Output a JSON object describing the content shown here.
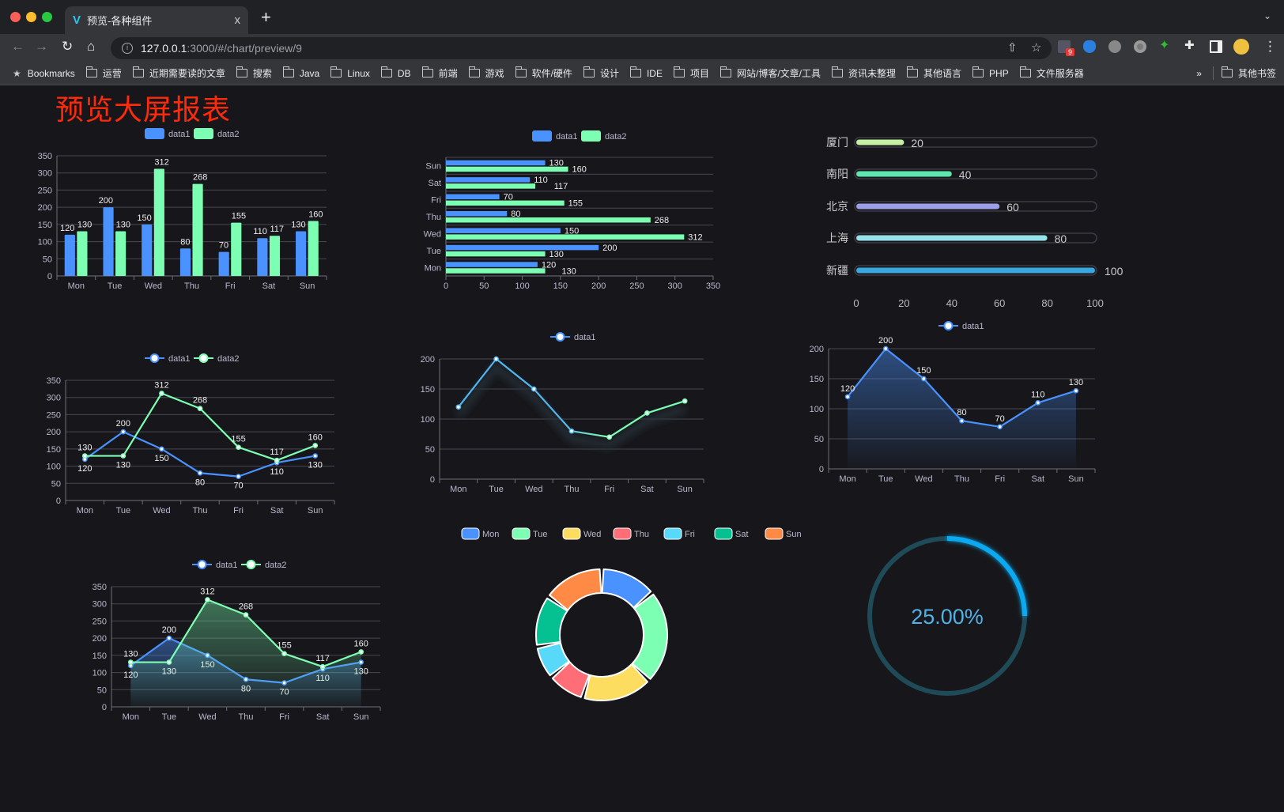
{
  "browser": {
    "tab_title": "预览-各种组件",
    "tab_close": "x",
    "new_tab": "+",
    "url_host": "127.0.0.1",
    "url_path": ":3000/#/chart/preview/9",
    "extension_badge": "9",
    "bookmarks": [
      "Bookmarks",
      "运营",
      "近期需要读的文章",
      "搜索",
      "Java",
      "Linux",
      "DB",
      "前端",
      "游戏",
      "软件/硬件",
      "设计",
      "IDE",
      "项目",
      "网站/博客/文章/工具",
      "资讯未整理",
      "其他语言",
      "PHP",
      "文件服务器"
    ],
    "bookmarks_more": "»",
    "other_bookmarks": "其他书签"
  },
  "page": {
    "title": "预览大屏报表"
  },
  "colors": {
    "data1": "#4992ff",
    "data2": "#7cffb2",
    "background": "#17171b",
    "title": "#ff2a0a"
  },
  "chart_data": [
    {
      "type": "bar",
      "orientation": "vertical",
      "categories": [
        "Mon",
        "Tue",
        "Wed",
        "Thu",
        "Fri",
        "Sat",
        "Sun"
      ],
      "series": [
        {
          "name": "data1",
          "values": [
            120,
            200,
            150,
            80,
            70,
            110,
            130
          ]
        },
        {
          "name": "data2",
          "values": [
            130,
            130,
            312,
            268,
            155,
            117,
            160
          ]
        }
      ],
      "ylim": [
        0,
        350
      ],
      "yticks": [
        0,
        50,
        100,
        150,
        200,
        250,
        300,
        350
      ],
      "grid": true,
      "legend": "top-center",
      "data_labels": true
    },
    {
      "type": "bar",
      "orientation": "horizontal",
      "categories": [
        "Mon",
        "Tue",
        "Wed",
        "Thu",
        "Fri",
        "Sat",
        "Sun"
      ],
      "series": [
        {
          "name": "data1",
          "values": [
            120,
            200,
            150,
            80,
            70,
            110,
            130
          ]
        },
        {
          "name": "data2",
          "values": [
            130,
            130,
            312,
            268,
            155,
            117,
            160
          ]
        }
      ],
      "xlim": [
        0,
        350
      ],
      "xticks": [
        0,
        50,
        100,
        150,
        200,
        250,
        300,
        350
      ],
      "grid": true,
      "legend": "top-center",
      "data_labels": true
    },
    {
      "type": "bar",
      "orientation": "horizontal",
      "style": "progress",
      "categories": [
        "厦门",
        "南阳",
        "北京",
        "上海",
        "新疆"
      ],
      "values": [
        20,
        40,
        60,
        80,
        100
      ],
      "colors": [
        "#c5eea5",
        "#5ee5b0",
        "#9c9ee8",
        "#95e2ea",
        "#3aa8e0"
      ],
      "xlim": [
        0,
        100
      ],
      "xticks": [
        0,
        20,
        40,
        60,
        80,
        100
      ],
      "data_labels": true
    },
    {
      "type": "line",
      "categories": [
        "Mon",
        "Tue",
        "Wed",
        "Thu",
        "Fri",
        "Sat",
        "Sun"
      ],
      "series": [
        {
          "name": "data1",
          "values": [
            120,
            200,
            150,
            80,
            70,
            110,
            130
          ]
        },
        {
          "name": "data2",
          "values": [
            130,
            130,
            312,
            268,
            155,
            117,
            160
          ]
        }
      ],
      "ylim": [
        0,
        350
      ],
      "yticks": [
        0,
        50,
        100,
        150,
        200,
        250,
        300,
        350
      ],
      "grid": true,
      "legend": "top-center",
      "data_labels": true
    },
    {
      "type": "line",
      "categories": [
        "Mon",
        "Tue",
        "Wed",
        "Thu",
        "Fri",
        "Sat",
        "Sun"
      ],
      "series": [
        {
          "name": "data1",
          "values": [
            120,
            200,
            150,
            80,
            70,
            110,
            130
          ]
        }
      ],
      "ylim": [
        0,
        200
      ],
      "yticks": [
        0,
        50,
        100,
        150,
        200
      ],
      "grid": true,
      "legend": "top-center",
      "data_labels": false,
      "line_gradient": [
        "#4fb6f0",
        "#7cffb2"
      ]
    },
    {
      "type": "area",
      "categories": [
        "Mon",
        "Tue",
        "Wed",
        "Thu",
        "Fri",
        "Sat",
        "Sun"
      ],
      "series": [
        {
          "name": "data1",
          "values": [
            120,
            200,
            150,
            80,
            70,
            110,
            130
          ]
        }
      ],
      "ylim": [
        0,
        200
      ],
      "yticks": [
        0,
        50,
        100,
        150,
        200
      ],
      "grid": true,
      "legend": "top-center",
      "data_labels": true
    },
    {
      "type": "area",
      "categories": [
        "Mon",
        "Tue",
        "Wed",
        "Thu",
        "Fri",
        "Sat",
        "Sun"
      ],
      "series": [
        {
          "name": "data1",
          "values": [
            120,
            200,
            150,
            80,
            70,
            110,
            130
          ]
        },
        {
          "name": "data2",
          "values": [
            130,
            130,
            312,
            268,
            155,
            117,
            160
          ]
        }
      ],
      "ylim": [
        0,
        350
      ],
      "yticks": [
        0,
        50,
        100,
        150,
        200,
        250,
        300,
        350
      ],
      "grid": true,
      "legend": "top-center",
      "data_labels": true
    },
    {
      "type": "pie",
      "style": "donut",
      "categories": [
        "Mon",
        "Tue",
        "Wed",
        "Thu",
        "Fri",
        "Sat",
        "Sun"
      ],
      "values": [
        120,
        200,
        150,
        80,
        70,
        110,
        130
      ],
      "colors": [
        "#4992ff",
        "#7cffb2",
        "#fddd60",
        "#ff6e76",
        "#58d9f9",
        "#05c091",
        "#ff8a45"
      ],
      "legend": "top-center"
    },
    {
      "type": "gauge",
      "value": 25,
      "max": 100,
      "label": "25.00%",
      "color": "#10a9f0",
      "track_color": "#1f4a57",
      "text_color": "#4fb3e8"
    }
  ]
}
